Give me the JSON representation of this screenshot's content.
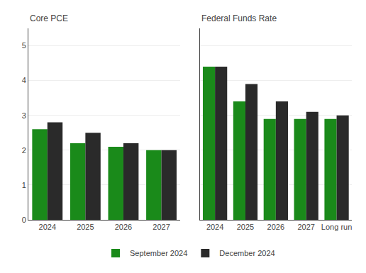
{
  "chart_data": [
    {
      "type": "bar",
      "title": "Core PCE",
      "categories": [
        "2024",
        "2025",
        "2026",
        "2027"
      ],
      "series": [
        {
          "name": "September 2024",
          "color": "#1a8a1a",
          "values": [
            2.6,
            2.2,
            2.1,
            2.0
          ]
        },
        {
          "name": "December 2024",
          "color": "#2a2a2a",
          "values": [
            2.8,
            2.5,
            2.2,
            2.0
          ]
        }
      ],
      "ylim": [
        0,
        5.5
      ],
      "yticks": [
        0,
        1,
        2,
        3,
        4,
        5
      ],
      "grid": true,
      "legend": "bottom"
    },
    {
      "type": "bar",
      "title": "Federal Funds Rate",
      "categories": [
        "2024",
        "2025",
        "2026",
        "2027",
        "Long run"
      ],
      "series": [
        {
          "name": "September 2024",
          "color": "#1a8a1a",
          "values": [
            4.4,
            3.4,
            2.9,
            2.9,
            2.9
          ]
        },
        {
          "name": "December 2024",
          "color": "#2a2a2a",
          "values": [
            4.4,
            3.9,
            3.4,
            3.1,
            3.0
          ]
        }
      ],
      "ylim": [
        0,
        5.5
      ],
      "yticks": [
        0,
        1,
        2,
        3,
        4,
        5
      ],
      "grid": true,
      "legend": "bottom",
      "tick_labels": "x"
    }
  ]
}
